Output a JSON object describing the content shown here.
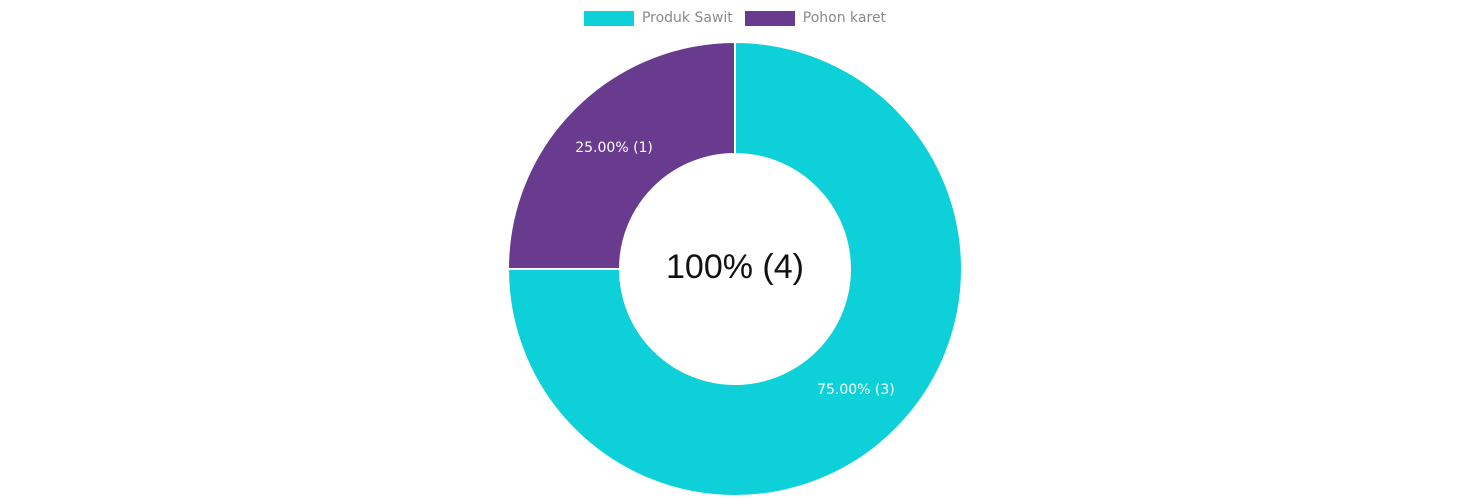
{
  "chart_data": {
    "type": "pie",
    "variant": "doughnut",
    "categories": [
      "Produk Sawit",
      "Pohon karet"
    ],
    "values": [
      3,
      1
    ],
    "colors": [
      "#0ed0d8",
      "#683b8f"
    ],
    "slice_labels": [
      "75.00% (3)",
      "25.00% (1)"
    ],
    "center_label": "100% (4)",
    "legend": {
      "placement": "top-center",
      "items": [
        {
          "label": "Produk Sawit",
          "color": "#0ed0d8"
        },
        {
          "label": "Pohon karet",
          "color": "#683b8f"
        }
      ]
    }
  }
}
